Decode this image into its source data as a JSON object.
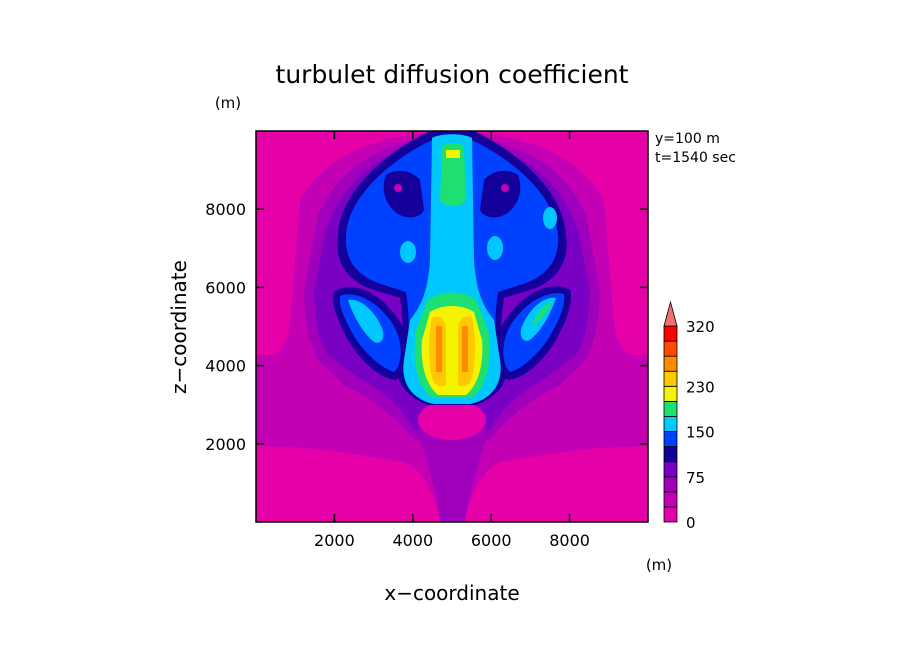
{
  "chart_data": {
    "type": "heatmap",
    "title": "turbulet diffusion coefficient",
    "xlabel": "x−coordinate",
    "ylabel": "z−coordinate",
    "x_unit": "(m)",
    "y_unit": "(m)",
    "xlim": [
      0,
      10000
    ],
    "ylim": [
      0,
      10000
    ],
    "x_ticks": [
      "2000",
      "4000",
      "6000",
      "8000"
    ],
    "y_ticks": [
      "2000",
      "4000",
      "6000",
      "8000"
    ],
    "annotations": [
      "y=100  m",
      "t=1540  sec"
    ],
    "colorbar": {
      "tick_labels": [
        "0",
        "75",
        "150",
        "230",
        "320"
      ],
      "levels": [
        0,
        25,
        50,
        75,
        100,
        125,
        150,
        180,
        205,
        230,
        260,
        290,
        320
      ],
      "colors": [
        "#e600a8",
        "#c400b4",
        "#a000bc",
        "#7a00c4",
        "#14009a",
        "#0040ff",
        "#00c8ff",
        "#1ee070",
        "#f4f400",
        "#ffc800",
        "#ff8a00",
        "#ff4a00",
        "#ff0000",
        "#f07070"
      ],
      "extend": "max"
    },
    "regions": [
      {
        "level": 1,
        "shape": "plume-envelope"
      },
      {
        "level": 4,
        "shape": "cap-core",
        "value": 75
      },
      {
        "level": 5,
        "shape": "cap-core",
        "value": 100
      },
      {
        "level": 6,
        "shape": "central-column",
        "value": 150
      },
      {
        "level": 7,
        "shape": "column-upper",
        "value": 165
      },
      {
        "level": 8,
        "shape": "column-lower",
        "value": 205
      },
      {
        "level": 9,
        "shape": "column-core",
        "value": 230
      },
      {
        "level": 10,
        "shape": "column-core",
        "value": 260
      }
    ]
  }
}
